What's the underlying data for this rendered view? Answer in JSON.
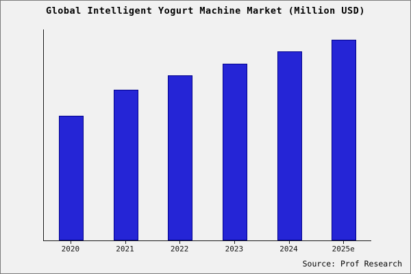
{
  "title": "Global Intelligent Yogurt Machine Market (Million USD)",
  "source": "Source: Prof Research",
  "colors": {
    "bar_fill": "#2525d6",
    "bar_border": "#00008b",
    "background": "#f1f1f1",
    "axis": "#1a1a1a"
  },
  "chart_data": {
    "type": "bar",
    "categories": [
      "2020",
      "2021",
      "2022",
      "2023",
      "2024",
      "2025e"
    ],
    "values": [
      62,
      75,
      82,
      88,
      94,
      100
    ],
    "title": "Global Intelligent Yogurt Machine Market (Million USD)",
    "xlabel": "",
    "ylabel": "",
    "ylim": [
      0,
      105
    ],
    "grid": false,
    "legend": false,
    "annotations": [
      "Source: Prof Research"
    ]
  }
}
